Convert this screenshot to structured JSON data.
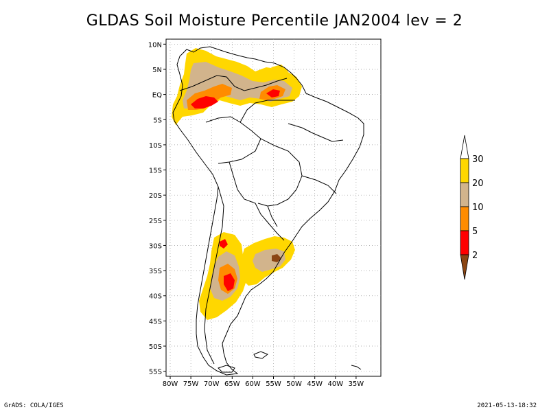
{
  "title": "GLDAS Soil Moisture Percentile JAN2004 lev = 2",
  "footer": {
    "left": "GrADS: COLA/IGES",
    "right": "2021-05-13-18:32"
  },
  "map": {
    "lat_labels": [
      "10N",
      "5N",
      "EQ",
      "5S",
      "10S",
      "15S",
      "20S",
      "25S",
      "30S",
      "35S",
      "40S",
      "45S",
      "50S",
      "55S"
    ],
    "lon_labels": [
      "80W",
      "75W",
      "70W",
      "65W",
      "60W",
      "55W",
      "50W",
      "45W",
      "40W",
      "35W"
    ],
    "lon_range": [
      -81,
      -29
    ],
    "lat_range": [
      -56,
      11
    ]
  },
  "legend": {
    "labels": [
      "2",
      "5",
      "10",
      "20",
      "30"
    ],
    "colors": {
      "below2": "#8b4513",
      "c2_5": "#ff0000",
      "c5_10": "#ff8c00",
      "c10_20": "#d2b48c",
      "c20_30": "#ffd700",
      "above30": "#ffffff"
    }
  }
}
